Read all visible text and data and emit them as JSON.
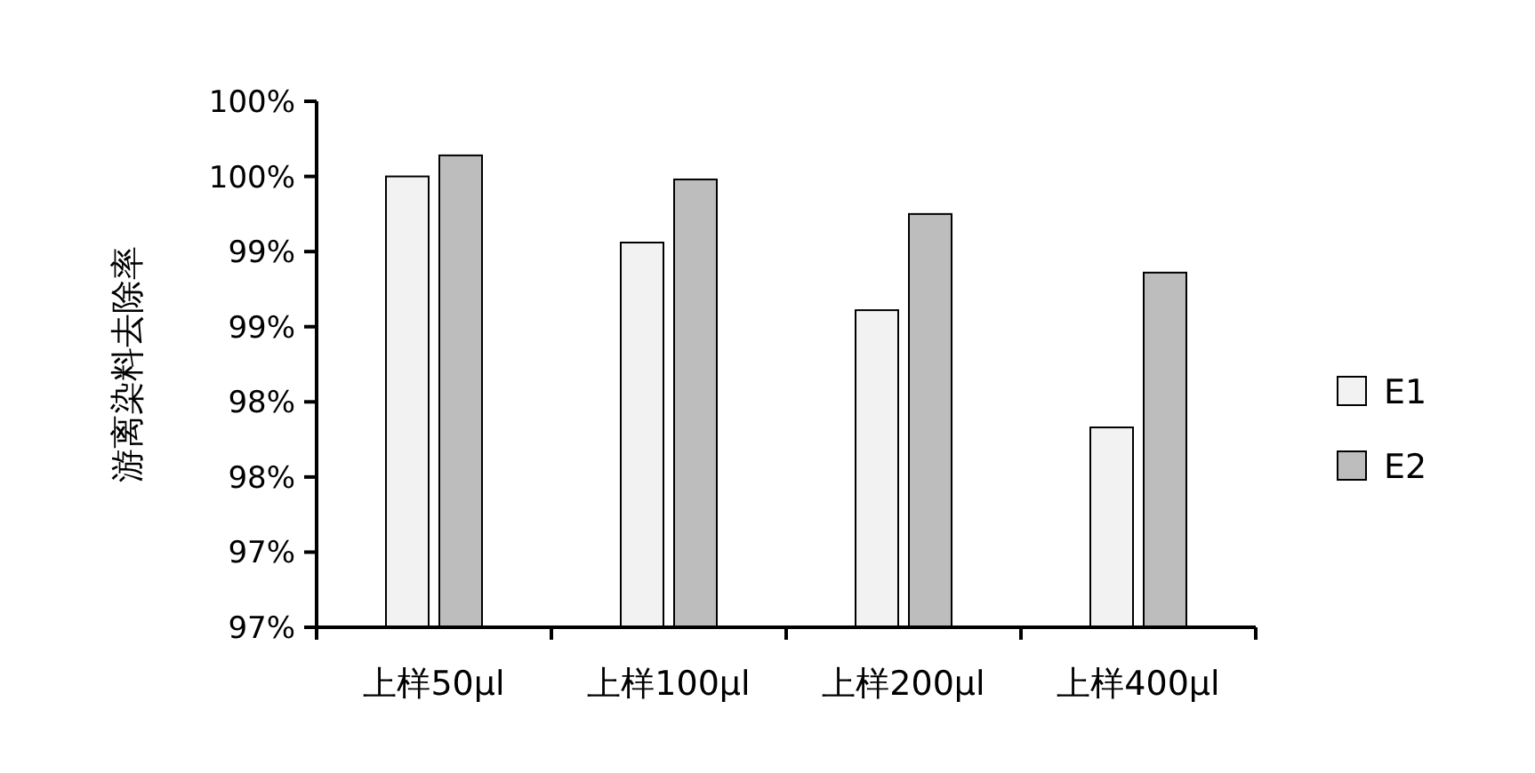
{
  "chart_data": {
    "type": "bar",
    "ylabel": "游离染料去除率",
    "categories": [
      "上样50μl",
      "上样100μl",
      "上样200μl",
      "上样400μl"
    ],
    "series": [
      {
        "name": "E1",
        "color": "#f2f2f2",
        "values": [
          100.0,
          99.56,
          99.11,
          98.33
        ]
      },
      {
        "name": "E2",
        "color": "#bdbdbd",
        "values": [
          100.14,
          99.98,
          99.75,
          99.36
        ]
      }
    ],
    "ylim": [
      97,
      100.5
    ],
    "yticks": [
      {
        "value": 97,
        "label": "97%"
      },
      {
        "value": 97.5,
        "label": "97%"
      },
      {
        "value": 98,
        "label": "98%"
      },
      {
        "value": 98.5,
        "label": "98%"
      },
      {
        "value": 99,
        "label": "99%"
      },
      {
        "value": 99.5,
        "label": "99%"
      },
      {
        "value": 100,
        "label": "100%"
      },
      {
        "value": 100.5,
        "label": "100%"
      }
    ],
    "legend": "right"
  }
}
